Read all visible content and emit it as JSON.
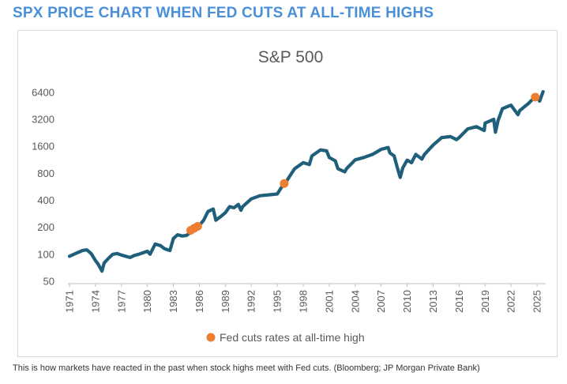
{
  "page": {
    "headline": "SPX PRICE CHART WHEN FED CUTS AT ALL-TIME HIGHS",
    "caption": "This is how markets have reacted in the past when stock highs meet with Fed cuts. (Bloomberg; JP Morgan Private Bank)"
  },
  "colors": {
    "headline": "#4a90d9",
    "series": "#1f5f7a",
    "highlight": "#ed7d31",
    "axis_text": "#595959",
    "axis_line": "#bfbfbf",
    "title_text": "#595959"
  },
  "chart_data": {
    "type": "line",
    "title": "S&P 500",
    "xlabel": "",
    "ylabel": "",
    "yscale": "log2",
    "ylim": [
      50,
      7200
    ],
    "xlim": [
      1971,
      2026
    ],
    "y_ticks": [
      50,
      100,
      200,
      400,
      800,
      1600,
      3200,
      6400
    ],
    "x_ticks": [
      "1971",
      "1974",
      "1977",
      "1980",
      "1983",
      "1986",
      "1989",
      "1992",
      "1995",
      "1998",
      "2001",
      "2004",
      "2007",
      "2010",
      "2013",
      "2016",
      "2019",
      "2022",
      "2025"
    ],
    "grid": false,
    "legend_position": "bottom",
    "series": [
      {
        "name": "S&P 500",
        "x": [
          1971,
          1971.5,
          1972,
          1972.5,
          1973,
          1973.5,
          1974,
          1974.3,
          1974.75,
          1975,
          1975.5,
          1976,
          1976.5,
          1977,
          1977.5,
          1978,
          1978.5,
          1979,
          1979.5,
          1980,
          1980.3,
          1980.9,
          1981.5,
          1982,
          1982.6,
          1983,
          1983.5,
          1984,
          1984.5,
          1985,
          1985.5,
          1986,
          1986.5,
          1987,
          1987.6,
          1987.9,
          1988.5,
          1989,
          1989.5,
          1990,
          1990.5,
          1990.8,
          1991,
          1992,
          1993,
          1994,
          1995,
          1995.5,
          1996,
          1997,
          1998,
          1998.7,
          1999,
          2000,
          2000.7,
          2001,
          2001.7,
          2002,
          2002.8,
          2003,
          2004,
          2005,
          2006,
          2007,
          2007.8,
          2008,
          2008.5,
          2008.9,
          2009.2,
          2009.5,
          2010,
          2010.5,
          2011,
          2011.7,
          2012,
          2013,
          2014,
          2015,
          2015.7,
          2016,
          2017,
          2018,
          2018.9,
          2019,
          2020,
          2020.2,
          2020.5,
          2021,
          2022,
          2022.8,
          2023,
          2024,
          2024.7,
          2025,
          2025.3,
          2025.7
        ],
        "values": [
          95,
          100,
          105,
          110,
          112,
          102,
          85,
          78,
          65,
          80,
          90,
          100,
          102,
          98,
          95,
          92,
          97,
          100,
          104,
          108,
          100,
          130,
          125,
          115,
          110,
          150,
          165,
          160,
          162,
          175,
          190,
          210,
          240,
          300,
          320,
          240,
          265,
          290,
          340,
          330,
          360,
          310,
          340,
          415,
          450,
          460,
          470,
          560,
          640,
          900,
          1050,
          1000,
          1250,
          1460,
          1420,
          1200,
          1100,
          900,
          830,
          900,
          1130,
          1200,
          1300,
          1480,
          1550,
          1350,
          1250,
          900,
          720,
          920,
          1120,
          1050,
          1300,
          1150,
          1300,
          1650,
          2000,
          2050,
          1900,
          2000,
          2500,
          2650,
          2400,
          2900,
          3200,
          2300,
          3100,
          4200,
          4600,
          3600,
          4000,
          4800,
          5600,
          5700,
          5100,
          6500
        ]
      }
    ],
    "highlights": {
      "name": "Fed cuts rates at all-time high",
      "points": [
        {
          "x": 1985.0,
          "y": 185
        },
        {
          "x": 1985.4,
          "y": 195
        },
        {
          "x": 1985.8,
          "y": 205
        },
        {
          "x": 1995.8,
          "y": 615
        },
        {
          "x": 2024.8,
          "y": 5650
        }
      ]
    }
  }
}
